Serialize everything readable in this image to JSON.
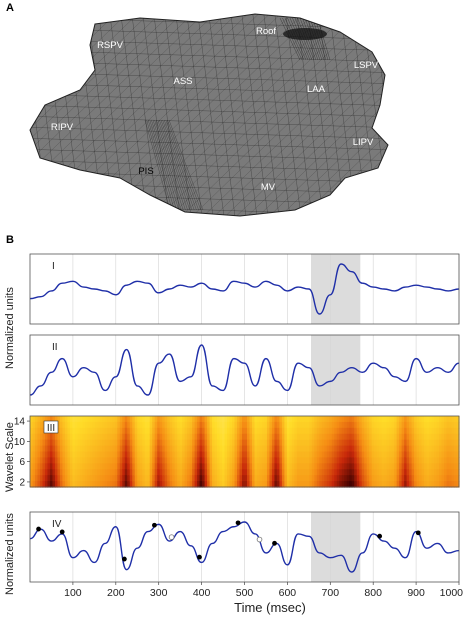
{
  "panel_a": {
    "letter": "A",
    "labels": [
      "RSPV",
      "ASS",
      "Roof",
      "LAA",
      "LSPV",
      "RIPV",
      "LIPV",
      "PIS",
      "MV"
    ],
    "colors": {
      "mesh_fill": "#7a7a7a",
      "mesh_line": "#1a1a1a"
    }
  },
  "panel_b": {
    "letter": "B",
    "xlabel": "Time (msec)",
    "x_ticks": [
      "100",
      "200",
      "300",
      "400",
      "500",
      "600",
      "700",
      "800",
      "900",
      "1000"
    ],
    "ylabel_ecg_top": "Normalized units",
    "ylabel_wavelet": "Wavelet Scale",
    "ylabel_ecg_bottom": "Normalized units",
    "wavelet_ticks": [
      "14",
      "10",
      "6",
      "2"
    ],
    "subplot_labels": [
      "I",
      "II",
      "III",
      "IV"
    ],
    "highlight_range_msec": [
      655,
      770
    ],
    "colors": {
      "trace": "#1f2fa8",
      "highlight": "#dcdcdc",
      "marker": "#000000"
    }
  },
  "chart_data": [
    {
      "type": "line",
      "name": "I",
      "xlim": [
        0,
        1000
      ],
      "x": [
        0,
        25,
        50,
        75,
        100,
        125,
        150,
        175,
        200,
        225,
        250,
        275,
        300,
        325,
        350,
        375,
        400,
        425,
        450,
        475,
        500,
        525,
        550,
        575,
        600,
        625,
        650,
        675,
        700,
        725,
        750,
        775,
        800,
        825,
        850,
        875,
        900,
        925,
        950,
        975,
        1000
      ],
      "y": [
        0.1,
        0.15,
        0.3,
        0.5,
        0.55,
        0.4,
        0.35,
        0.3,
        0.2,
        0.45,
        0.55,
        0.5,
        0.25,
        0.35,
        0.45,
        0.4,
        0.5,
        0.35,
        0.3,
        0.55,
        0.5,
        0.4,
        0.55,
        0.45,
        0.3,
        0.4,
        0.35,
        -0.3,
        0.2,
        1.0,
        0.8,
        0.5,
        0.4,
        0.35,
        0.3,
        0.4,
        0.45,
        0.4,
        0.35,
        0.3,
        0.35
      ]
    },
    {
      "type": "line",
      "name": "II",
      "xlim": [
        0,
        1000
      ],
      "x": [
        0,
        25,
        50,
        75,
        100,
        125,
        150,
        175,
        200,
        225,
        250,
        275,
        300,
        325,
        350,
        375,
        400,
        425,
        450,
        475,
        500,
        525,
        550,
        575,
        600,
        625,
        650,
        675,
        700,
        725,
        750,
        775,
        800,
        825,
        850,
        875,
        900,
        925,
        950,
        975,
        1000
      ],
      "y": [
        0.2,
        0.3,
        0.45,
        0.6,
        0.4,
        0.5,
        0.45,
        0.25,
        0.4,
        0.7,
        0.3,
        0.2,
        0.55,
        0.65,
        0.35,
        0.4,
        0.75,
        0.3,
        0.25,
        0.6,
        0.55,
        0.3,
        0.6,
        0.35,
        0.25,
        0.55,
        0.5,
        0.3,
        0.35,
        0.45,
        0.5,
        0.45,
        0.55,
        0.5,
        0.4,
        0.35,
        0.6,
        0.45,
        0.5,
        0.45,
        0.55
      ]
    },
    {
      "type": "heatmap",
      "name": "III",
      "xlim": [
        0,
        1000
      ],
      "ylim": [
        1,
        15
      ],
      "intensity_x": [
        0,
        25,
        50,
        75,
        100,
        125,
        150,
        175,
        200,
        225,
        250,
        275,
        300,
        325,
        350,
        375,
        400,
        425,
        450,
        475,
        500,
        525,
        550,
        575,
        600,
        625,
        650,
        675,
        700,
        725,
        750,
        775,
        800,
        825,
        850,
        875,
        900,
        925,
        950,
        975,
        1000
      ],
      "intensity": [
        0.5,
        0.7,
        0.95,
        0.6,
        0.4,
        0.45,
        0.5,
        0.55,
        0.6,
        0.95,
        0.5,
        0.4,
        0.85,
        0.6,
        0.45,
        0.6,
        1.0,
        0.45,
        0.35,
        0.5,
        0.9,
        0.45,
        0.5,
        0.95,
        0.4,
        0.5,
        0.5,
        0.65,
        0.75,
        0.9,
        1.0,
        0.7,
        0.5,
        0.45,
        0.5,
        0.85,
        0.55,
        0.45,
        0.5,
        0.6,
        0.55
      ]
    },
    {
      "type": "line",
      "name": "IV",
      "xlim": [
        0,
        1000
      ],
      "x": [
        0,
        25,
        50,
        75,
        100,
        125,
        150,
        175,
        200,
        225,
        250,
        275,
        300,
        325,
        350,
        375,
        400,
        425,
        450,
        475,
        500,
        525,
        550,
        575,
        600,
        625,
        650,
        675,
        700,
        725,
        750,
        775,
        800,
        825,
        850,
        875,
        900,
        925,
        950,
        975,
        1000
      ],
      "y": [
        0.6,
        0.8,
        0.55,
        0.7,
        0.2,
        0.35,
        0.1,
        0.5,
        0.85,
        -0.05,
        0.4,
        0.75,
        0.9,
        0.55,
        0.75,
        0.45,
        0.1,
        0.5,
        0.75,
        0.85,
        0.95,
        0.7,
        0.3,
        0.5,
        0.05,
        0.7,
        0.65,
        0.3,
        0.2,
        0.25,
        -0.1,
        0.3,
        0.7,
        0.55,
        0.4,
        0.2,
        0.75,
        0.4,
        0.5,
        0.3,
        0.35
      ],
      "peaks_filled_x": [
        20,
        75,
        220,
        290,
        395,
        485,
        570,
        815,
        905
      ],
      "peaks_open_x": [
        330,
        535
      ]
    }
  ]
}
